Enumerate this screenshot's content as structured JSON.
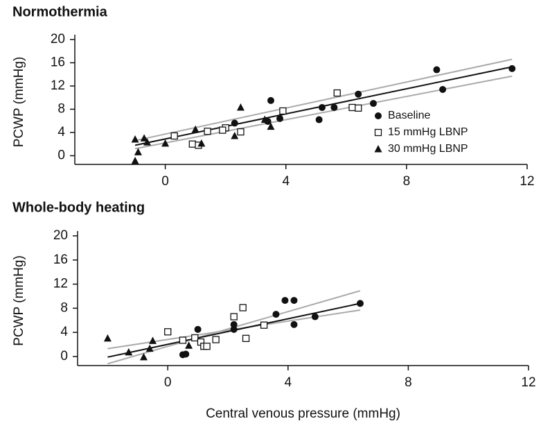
{
  "chart_data": [
    {
      "type": "scatter",
      "title": "Normothermia",
      "y_label": "PCWP (mmHg)",
      "xlim": [
        -3,
        12
      ],
      "xticks": [
        0,
        4,
        8,
        12
      ],
      "ylim": [
        -1.5,
        20
      ],
      "yticks": [
        0,
        4,
        8,
        12,
        16,
        20
      ],
      "legend": "right",
      "series": [
        {
          "name": "Baseline",
          "color": "#111111",
          "marker": "circle",
          "x": [
            9.0,
            11.5,
            9.2,
            6.4,
            6.9,
            3.5,
            5.2,
            5.6,
            5.1,
            3.8,
            3.4,
            2.3
          ],
          "values": [
            14.8,
            15.0,
            11.4,
            10.6,
            9.0,
            9.5,
            8.3,
            8.3,
            6.2,
            6.4,
            5.9,
            5.6
          ]
        },
        {
          "name": "15 mmHg LBNP",
          "color": "#111111",
          "marker": "square",
          "x": [
            5.7,
            3.9,
            6.2,
            6.4,
            2.0,
            1.9,
            2.5,
            1.4,
            0.3,
            0.9,
            1.1
          ],
          "values": [
            10.8,
            7.7,
            8.3,
            8.2,
            4.8,
            4.4,
            4.1,
            4.2,
            3.4,
            2.0,
            1.8
          ]
        },
        {
          "name": "30 mmHg LBNP",
          "color": "#111111",
          "marker": "triangle",
          "x": [
            -1.0,
            -0.9,
            -1.0,
            -0.7,
            -0.6,
            0.0,
            1.0,
            1.2,
            2.3,
            2.5,
            3.5,
            3.3
          ],
          "values": [
            -0.9,
            0.6,
            2.8,
            3.0,
            2.3,
            2.1,
            4.5,
            2.1,
            3.4,
            8.3,
            5.0,
            6.2
          ]
        }
      ],
      "fit_lines": [
        {
          "color": "#aaaaaa",
          "x": [
            -1,
            11.5
          ],
          "values": [
            2.6,
            16.6
          ]
        },
        {
          "color": "#aaaaaa",
          "x": [
            -1,
            11.5
          ],
          "values": [
            1.2,
            13.7
          ]
        },
        {
          "color": "#111111",
          "x": [
            -1,
            11.5
          ],
          "values": [
            1.8,
            15.3
          ]
        }
      ]
    },
    {
      "type": "scatter",
      "title": "Whole-body heating",
      "y_label": "PCWP (mmHg)",
      "x_label": "Central venous pressure (mmHg)",
      "xlim": [
        -3,
        12
      ],
      "xticks": [
        0,
        4,
        8,
        12
      ],
      "ylim": [
        -1.5,
        20
      ],
      "yticks": [
        0,
        4,
        8,
        12,
        16,
        20
      ],
      "series": [
        {
          "color": "#111111",
          "marker": "circle",
          "x": [
            1.0,
            2.2,
            2.2,
            3.6,
            3.9,
            4.2,
            4.2,
            4.9,
            6.4,
            0.6,
            0.5
          ],
          "values": [
            4.5,
            4.5,
            5.3,
            7.0,
            9.3,
            9.3,
            5.3,
            6.6,
            8.8,
            0.4,
            0.3
          ]
        },
        {
          "color": "#111111",
          "marker": "square",
          "x": [
            0.0,
            0.5,
            0.9,
            1.1,
            1.2,
            1.3,
            1.6,
            2.2,
            2.5,
            2.6,
            3.2
          ],
          "values": [
            4.1,
            2.7,
            3.1,
            2.4,
            1.7,
            1.7,
            2.8,
            6.6,
            8.1,
            3.0,
            5.2
          ]
        },
        {
          "color": "#111111",
          "marker": "triangle",
          "x": [
            -2.0,
            -1.3,
            -0.8,
            -0.6,
            -0.5,
            0.7
          ],
          "values": [
            3.0,
            0.7,
            -0.1,
            1.3,
            2.6,
            1.8
          ]
        }
      ],
      "fit_lines": [
        {
          "color": "#aaaaaa",
          "x": [
            -2,
            6.4
          ],
          "values": [
            -1.2,
            10.9
          ]
        },
        {
          "color": "#aaaaaa",
          "x": [
            -2,
            6.4
          ],
          "values": [
            1.3,
            7.7
          ]
        },
        {
          "color": "#111111",
          "x": [
            -2,
            6.4
          ],
          "values": [
            -0.1,
            8.8
          ]
        }
      ]
    }
  ]
}
